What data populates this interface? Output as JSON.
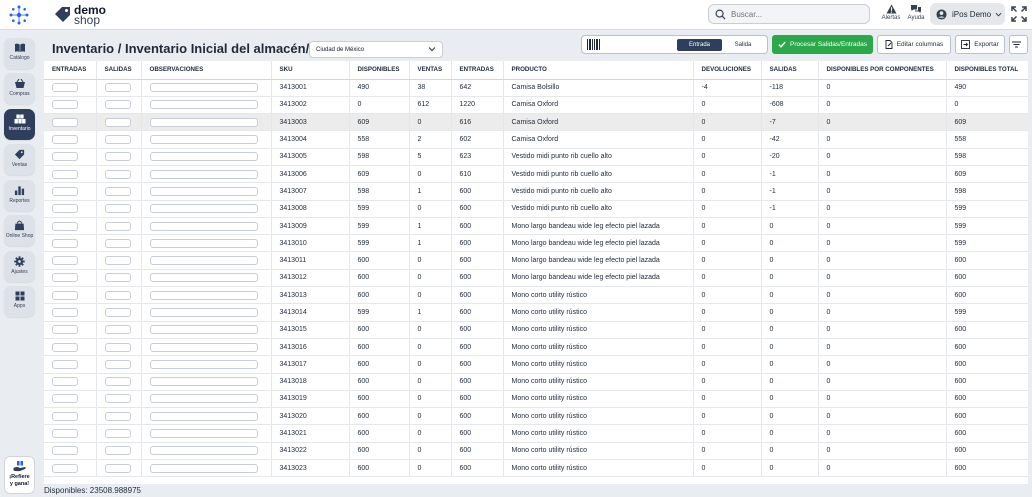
{
  "topbar": {
    "logo_line1": "demo",
    "logo_line2": "shop",
    "search_placeholder": "Buscar...",
    "alerts_label": "Alertas",
    "help_label": "Ayuda",
    "user_name": "iPos Demo"
  },
  "sidebar": {
    "items": [
      {
        "label": "Catálogo",
        "icon": "book-icon"
      },
      {
        "label": "Compras",
        "icon": "basket-icon"
      },
      {
        "label": "Inventario",
        "icon": "warehouse-icon"
      },
      {
        "label": "Ventas",
        "icon": "tag-icon"
      },
      {
        "label": "Reportes",
        "icon": "bar-chart-icon"
      },
      {
        "label": "Online Shop",
        "icon": "shopping-bag-icon"
      },
      {
        "label": "Ajustes",
        "icon": "gear-icon"
      },
      {
        "label": "Apps",
        "icon": "apps-grid-icon"
      }
    ],
    "refer_line1": "¡Refiere",
    "refer_line2": "y gana!"
  },
  "page": {
    "title": "Inventario / Inventario Inicial del almacén/canal:",
    "warehouse": "Ciudad de México"
  },
  "toolbar": {
    "entrada": "Entrada",
    "salida": "Salida",
    "process": "Procesar Salidas/Entradas",
    "edit_columns": "Editar columnas",
    "export": "Exportar"
  },
  "table": {
    "headers": [
      "ENTRADAS",
      "SALIDAS",
      "OBSERVACIONES",
      "SKU",
      "DISPONIBLES",
      "VENTAS",
      "ENTRADAS",
      "PRODUCTO",
      "DEVOLUCIONES",
      "SALIDAS",
      "DISPONIBLES POR COMPONENTES",
      "DISPONIBLES TOTAL"
    ],
    "rows": [
      [
        "3413001",
        "490",
        "38",
        "642",
        "Camisa Bolsillo",
        "-4",
        "-118",
        "0",
        "490"
      ],
      [
        "3413002",
        "0",
        "612",
        "1220",
        "Camisa Oxford",
        "0",
        "-608",
        "0",
        "0"
      ],
      [
        "3413003",
        "609",
        "0",
        "616",
        "Camisa Oxford",
        "0",
        "-7",
        "0",
        "609"
      ],
      [
        "3413004",
        "558",
        "2",
        "602",
        "Camisa Oxford",
        "0",
        "-42",
        "0",
        "558"
      ],
      [
        "3413005",
        "598",
        "5",
        "623",
        "Vestido midi punto rib cuello alto",
        "0",
        "-20",
        "0",
        "598"
      ],
      [
        "3413006",
        "609",
        "0",
        "610",
        "Vestido midi punto rib cuello alto",
        "0",
        "-1",
        "0",
        "609"
      ],
      [
        "3413007",
        "598",
        "1",
        "600",
        "Vestido midi punto rib cuello alto",
        "0",
        "-1",
        "0",
        "598"
      ],
      [
        "3413008",
        "599",
        "0",
        "600",
        "Vestido midi punto rib cuello alto",
        "0",
        "-1",
        "0",
        "599"
      ],
      [
        "3413009",
        "599",
        "1",
        "600",
        "Mono largo bandeau wide leg efecto piel lazada",
        "0",
        "0",
        "0",
        "599"
      ],
      [
        "3413010",
        "599",
        "1",
        "600",
        "Mono largo bandeau wide leg efecto piel lazada",
        "0",
        "0",
        "0",
        "599"
      ],
      [
        "3413011",
        "600",
        "0",
        "600",
        "Mono largo bandeau wide leg efecto piel lazada",
        "0",
        "0",
        "0",
        "600"
      ],
      [
        "3413012",
        "600",
        "0",
        "600",
        "Mono largo bandeau wide leg efecto piel lazada",
        "0",
        "0",
        "0",
        "600"
      ],
      [
        "3413013",
        "600",
        "0",
        "600",
        "Mono corto utility rústico",
        "0",
        "0",
        "0",
        "600"
      ],
      [
        "3413014",
        "599",
        "1",
        "600",
        "Mono corto utility rústico",
        "0",
        "0",
        "0",
        "599"
      ],
      [
        "3413015",
        "600",
        "0",
        "600",
        "Mono corto utility rústico",
        "0",
        "0",
        "0",
        "600"
      ],
      [
        "3413016",
        "600",
        "0",
        "600",
        "Mono corto utility rústico",
        "0",
        "0",
        "0",
        "600"
      ],
      [
        "3413017",
        "600",
        "0",
        "600",
        "Mono corto utility rústico",
        "0",
        "0",
        "0",
        "600"
      ],
      [
        "3413018",
        "600",
        "0",
        "600",
        "Mono corto utility rústico",
        "0",
        "0",
        "0",
        "600"
      ],
      [
        "3413019",
        "600",
        "0",
        "600",
        "Mono corto utility rústico",
        "0",
        "0",
        "0",
        "600"
      ],
      [
        "3413020",
        "600",
        "0",
        "600",
        "Mono corto utility rústico",
        "0",
        "0",
        "0",
        "600"
      ],
      [
        "3413021",
        "600",
        "0",
        "600",
        "Mono corto utility rústico",
        "0",
        "0",
        "0",
        "600"
      ],
      [
        "3413022",
        "600",
        "0",
        "600",
        "Mono corto utility rústico",
        "0",
        "0",
        "0",
        "600"
      ],
      [
        "3413023",
        "600",
        "0",
        "600",
        "Mono corto utility rústico",
        "0",
        "0",
        "0",
        "600"
      ]
    ]
  },
  "footer": {
    "available": "Disponibles: 23508.988975"
  },
  "colors": {
    "primary": "#2f3e5c",
    "success": "#2ba84a",
    "highlight_row": "#ececec"
  }
}
